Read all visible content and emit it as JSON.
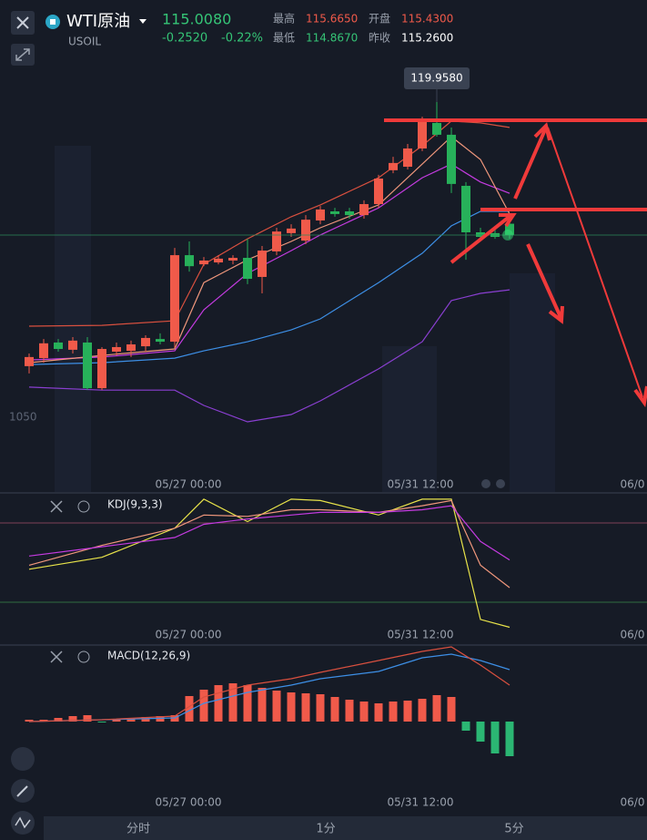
{
  "header": {
    "name": "WTI原油",
    "symbol": "USOIL",
    "price": "115.0080",
    "change": "-0.2520",
    "change_pct": "-0.22%",
    "high_label": "最高",
    "high": "115.6650",
    "open_label": "开盘",
    "open": "115.4300",
    "low_label": "最低",
    "low": "114.8670",
    "prev_label": "昨收",
    "prev": "115.2600"
  },
  "chart_data": [
    {
      "type": "candlestick",
      "ylim": [
        105.449,
        122.398
      ],
      "x_labels": [
        "05/27 00:00",
        "05/31 12:00",
        "06/0"
      ],
      "price_label": "1050",
      "max_label": "119.9580",
      "candles": {
        "open": [
          110.13,
          110.43,
          111.01,
          110.74,
          111.01,
          109.31,
          110.67,
          110.7,
          110.87,
          111.14,
          111.04,
          114.26,
          113.92,
          113.99,
          114.06,
          114.16,
          113.45,
          114.4,
          115.08,
          114.8,
          115.55,
          115.89,
          115.89,
          115.75,
          116.16,
          117.42,
          117.55,
          118.23,
          119.18,
          118.74,
          116.84,
          115.11,
          115.08,
          115.43
        ],
        "high": [
          110.6,
          111.14,
          111.14,
          111.21,
          111.21,
          110.84,
          111.01,
          111.08,
          111.28,
          111.35,
          114.53,
          114.77,
          114.19,
          114.26,
          114.26,
          114.87,
          114.6,
          115.28,
          115.41,
          115.75,
          116.09,
          116.02,
          116.02,
          116.3,
          117.25,
          117.92,
          118.4,
          119.41,
          119.958,
          119.01,
          116.98,
          115.28,
          115.21,
          115.665
        ],
        "low": [
          109.86,
          110.26,
          110.67,
          110.6,
          109.24,
          109.24,
          110.53,
          110.47,
          110.67,
          110.94,
          110.8,
          113.65,
          113.85,
          113.92,
          113.92,
          113.18,
          112.84,
          114.26,
          114.94,
          114.67,
          115.41,
          115.69,
          115.62,
          115.62,
          116.02,
          117.31,
          117.45,
          118.13,
          118.67,
          116.57,
          114.09,
          114.8,
          114.87,
          114.867
        ],
        "close": [
          110.47,
          110.98,
          110.77,
          111.08,
          109.31,
          110.77,
          110.84,
          110.94,
          111.18,
          111.04,
          114.26,
          113.85,
          114.06,
          114.13,
          114.16,
          113.38,
          114.43,
          115.14,
          115.25,
          115.58,
          115.96,
          115.79,
          115.75,
          116.16,
          117.11,
          117.69,
          118.23,
          119.28,
          118.74,
          116.91,
          115.11,
          114.94,
          114.94,
          115.008
        ]
      },
      "lines": [
        {
          "color": "#d9503f",
          "x": [
            0,
            5,
            10,
            12,
            15,
            18,
            20,
            24,
            27,
            29,
            31,
            33
          ],
          "values": [
            111.62,
            111.65,
            111.82,
            113.92,
            114.87,
            115.69,
            116.13,
            117.14,
            118.33,
            119.25,
            119.18,
            119.01
          ]
        },
        {
          "color": "#3d8fe6",
          "x": [
            0,
            5,
            10,
            12,
            15,
            18,
            20,
            24,
            27,
            29,
            31,
            33
          ],
          "values": [
            110.19,
            110.26,
            110.43,
            110.7,
            111.04,
            111.48,
            111.89,
            113.24,
            114.33,
            115.35,
            115.89,
            115.89
          ]
        },
        {
          "color": "#8a3fd1",
          "x": [
            0,
            5,
            10,
            12,
            15,
            18,
            20,
            24,
            27,
            29,
            31,
            33
          ],
          "values": [
            109.35,
            109.24,
            109.24,
            108.67,
            108.06,
            108.33,
            108.84,
            110.03,
            111.04,
            112.57,
            112.84,
            112.97
          ]
        },
        {
          "color": "#c43be0",
          "x": [
            0,
            5,
            10,
            12,
            15,
            18,
            20,
            24,
            27,
            29,
            31,
            33
          ],
          "values": [
            110.36,
            110.47,
            110.7,
            112.23,
            113.58,
            114.43,
            115.01,
            116.02,
            117.14,
            117.65,
            116.98,
            116.56
          ]
        },
        {
          "color": "#f0977c",
          "x": [
            0,
            5,
            10,
            12,
            15,
            18,
            20,
            24,
            27,
            29,
            31,
            33
          ],
          "values": [
            110.26,
            110.53,
            110.77,
            113.24,
            114.09,
            114.77,
            115.28,
            116.13,
            117.65,
            118.67,
            117.82,
            115.79
          ]
        }
      ]
    },
    {
      "type": "line",
      "title": "KDJ(9,3,3)",
      "ylim": [
        0,
        100
      ],
      "levels": [
        20,
        80
      ],
      "x_labels": [
        "05/27 00:00",
        "05/31 12:00",
        "06/0"
      ],
      "lines": [
        {
          "color": "#e8e34a",
          "x": [
            0,
            5,
            10,
            12,
            15,
            18,
            20,
            24,
            27,
            29,
            31,
            33
          ],
          "values": [
            45,
            54,
            76,
            98,
            81,
            98,
            97,
            86,
            98,
            98,
            7,
            1
          ]
        },
        {
          "color": "#f0977c",
          "x": [
            0,
            5,
            10,
            12,
            15,
            18,
            20,
            24,
            27,
            29,
            31,
            33
          ],
          "values": [
            48,
            63,
            76,
            86,
            85,
            90,
            90,
            88,
            93,
            97,
            48,
            31
          ]
        },
        {
          "color": "#c43be0",
          "x": [
            0,
            5,
            10,
            12,
            15,
            18,
            20,
            24,
            27,
            29,
            31,
            33
          ],
          "values": [
            55,
            62,
            69,
            79,
            83,
            86,
            88,
            88,
            90,
            93,
            66,
            52
          ]
        }
      ]
    },
    {
      "type": "bar",
      "title": "MACD(12,26,9)",
      "ylim": [
        -0.88,
        0.82
      ],
      "x_labels": [
        "05/27 00:00",
        "05/31 12:00",
        "06/0"
      ],
      "values": [
        0.02,
        0.02,
        0.04,
        0.06,
        0.07,
        -0.01,
        0.03,
        0.04,
        0.05,
        0.06,
        0.07,
        0.28,
        0.35,
        0.4,
        0.42,
        0.4,
        0.37,
        0.34,
        0.32,
        0.31,
        0.3,
        0.27,
        0.24,
        0.22,
        0.2,
        0.22,
        0.23,
        0.25,
        0.29,
        0.27,
        -0.1,
        -0.22,
        -0.35,
        -0.38
      ],
      "lines": [
        {
          "color": "#3d8fe6",
          "x": [
            0,
            5,
            10,
            12,
            15,
            18,
            20,
            24,
            27,
            29,
            31,
            33
          ],
          "values": [
            0,
            0.02,
            0.04,
            0.2,
            0.32,
            0.4,
            0.47,
            0.55,
            0.7,
            0.74,
            0.67,
            0.57
          ]
        },
        {
          "color": "#d9503f",
          "x": [
            0,
            5,
            10,
            12,
            15,
            18,
            20,
            24,
            27,
            29,
            31,
            33
          ],
          "values": [
            0,
            0.02,
            0.06,
            0.27,
            0.4,
            0.47,
            0.54,
            0.67,
            0.77,
            0.82,
            0.62,
            0.4
          ]
        }
      ]
    }
  ],
  "tabs": [
    "分时",
    "1分",
    "5分"
  ]
}
